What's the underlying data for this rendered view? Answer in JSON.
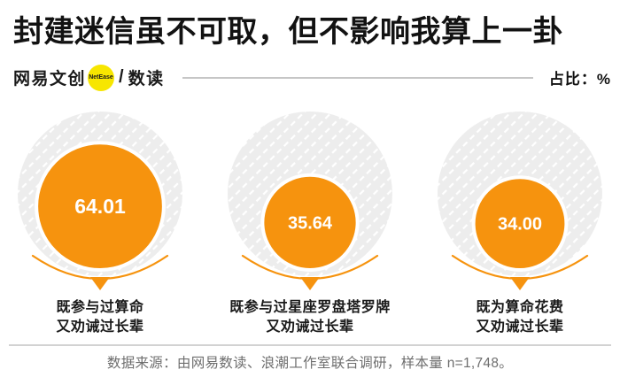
{
  "title": "封建迷信虽不可取，但不影响我算上一卦",
  "header": {
    "brand": "网易文创",
    "badge": "NetEase",
    "badge_color": "#F7E600",
    "separator": "/",
    "channel": "数读",
    "unit_label": "占比：%"
  },
  "chart_data": {
    "type": "bubble",
    "title": "封建迷信虽不可取，但不影响我算上一卦",
    "unit": "%",
    "scale_max": 100,
    "legend_note": "占比：%",
    "colors": {
      "bubble": "#F6930E",
      "track": "#EDEDED",
      "hatch": "#FFFFFF",
      "value_text": "#FFFFFF",
      "label_text": "#1A1A1A"
    },
    "items": [
      {
        "value": 64.01,
        "value_display": "64.01",
        "label_line1": "既参与过算命",
        "label_line2": "又劝诫过长辈"
      },
      {
        "value": 35.64,
        "value_display": "35.64",
        "label_line1": "既参与过星座罗盘塔罗牌",
        "label_line2": "又劝诫过长辈"
      },
      {
        "value": 34.0,
        "value_display": "34.00",
        "label_line1": "既为算命花费",
        "label_line2": "又劝诫过长辈"
      }
    ]
  },
  "footer": {
    "source": "数据来源：由网易数读、浪潮工作室联合调研，样本量 n=1,748。"
  }
}
